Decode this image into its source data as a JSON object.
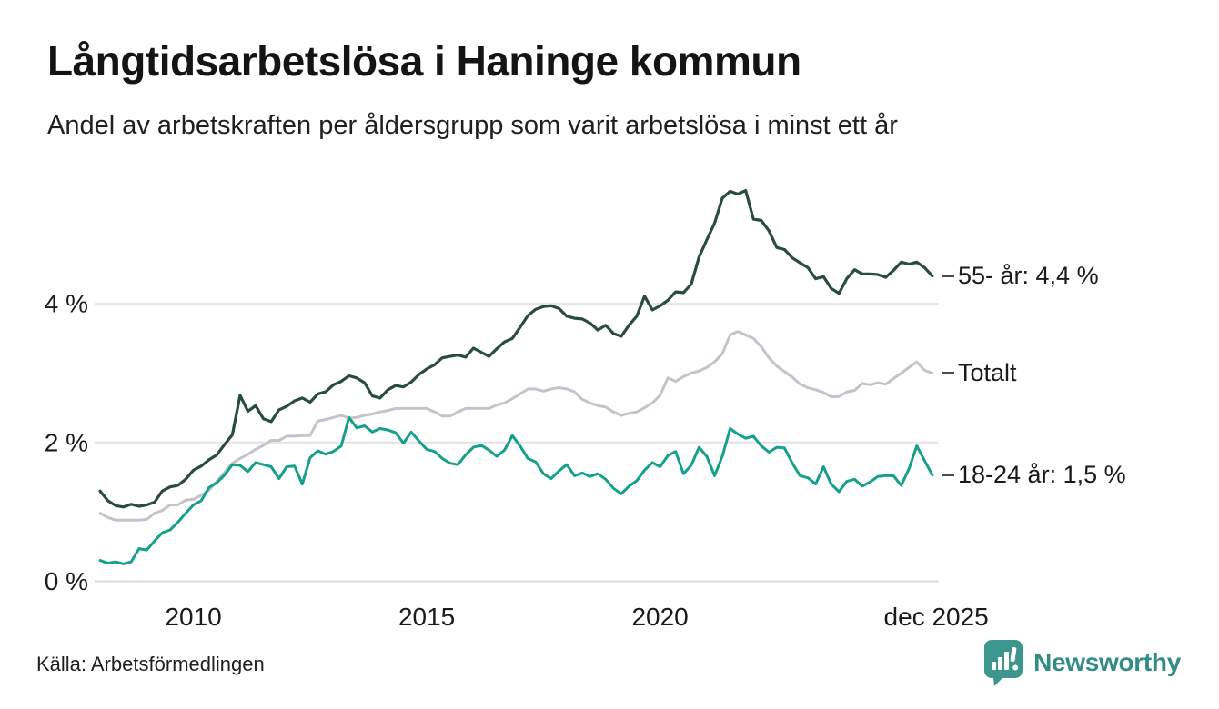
{
  "header": {
    "title": "Långtidsarbetslösa i Haninge kommun",
    "subtitle": "Andel av arbetskraften per åldersgrupp som varit arbetslösa i minst ett år"
  },
  "footer": {
    "source": "Källa: Arbetsförmedlingen",
    "logo_text": "Newsworthy"
  },
  "colors": {
    "background": "#ffffff",
    "title_text": "#141414",
    "axis_text": "#1a1a1a",
    "grid_line": "#e4e2e6",
    "zero_line": "#dbd9dc",
    "end_label_dash": "#4a4a4a",
    "series_55": "#2a4c40",
    "series_total": "#c5c2cc",
    "series_1824": "#14a08b",
    "logo_teal": "#3d968e",
    "logo_text_teal": "#328c85"
  },
  "chart_data": {
    "type": "line",
    "title": "Långtidsarbetslösa i Haninge kommun",
    "subtitle": "Andel av arbetskraften per åldersgrupp som varit arbetslösa i minst ett år",
    "unit": "%",
    "x_start_year": 2008.0,
    "x_step_years": 0.166667,
    "x_end_label": "dec 2025",
    "x_ticks": [
      {
        "year": 2010,
        "label": "2010"
      },
      {
        "year": 2015,
        "label": "2015"
      },
      {
        "year": 2020,
        "label": "2020"
      },
      {
        "year": 2025.917,
        "label": "dec 2025"
      }
    ],
    "y_ticks": [
      {
        "value": 0,
        "label": "0 %"
      },
      {
        "value": 2,
        "label": "2 %"
      },
      {
        "value": 4,
        "label": "4 %"
      }
    ],
    "ylim": [
      0,
      6.1
    ],
    "grid": "horizontal",
    "legend_position": "end-of-line-labels",
    "series": [
      {
        "name": "Totalt",
        "end_label": "Totalt",
        "color": "#c5c2cc",
        "stroke_width": 3,
        "values": [
          0.98,
          0.92,
          0.88,
          0.88,
          0.88,
          0.88,
          0.89,
          0.98,
          1.02,
          1.1,
          1.1,
          1.17,
          1.18,
          1.24,
          1.31,
          1.44,
          1.57,
          1.7,
          1.77,
          1.83,
          1.9,
          1.96,
          2.03,
          2.03,
          2.09,
          2.09,
          2.1,
          2.1,
          2.31,
          2.33,
          2.36,
          2.39,
          2.35,
          2.36,
          2.39,
          2.41,
          2.44,
          2.46,
          2.49,
          2.49,
          2.49,
          2.49,
          2.49,
          2.44,
          2.38,
          2.38,
          2.44,
          2.49,
          2.49,
          2.49,
          2.49,
          2.54,
          2.57,
          2.63,
          2.7,
          2.77,
          2.77,
          2.74,
          2.77,
          2.79,
          2.77,
          2.73,
          2.62,
          2.57,
          2.53,
          2.51,
          2.44,
          2.39,
          2.42,
          2.44,
          2.5,
          2.57,
          2.68,
          2.93,
          2.88,
          2.95,
          3.0,
          3.03,
          3.08,
          3.16,
          3.28,
          3.55,
          3.6,
          3.55,
          3.5,
          3.38,
          3.22,
          3.1,
          3.02,
          2.94,
          2.84,
          2.79,
          2.76,
          2.72,
          2.66,
          2.66,
          2.73,
          2.75,
          2.85,
          2.83,
          2.86,
          2.84,
          2.92,
          3.0,
          3.08,
          3.16,
          3.04,
          3.0
        ]
      },
      {
        "name": "18-24 år",
        "end_label": "18-24 år: 1,5 %",
        "last_value_display": "1,5 %",
        "color": "#14a08b",
        "stroke_width": 3,
        "values": [
          0.3,
          0.26,
          0.28,
          0.25,
          0.28,
          0.47,
          0.45,
          0.58,
          0.7,
          0.74,
          0.85,
          0.98,
          1.1,
          1.16,
          1.35,
          1.42,
          1.53,
          1.68,
          1.67,
          1.58,
          1.71,
          1.68,
          1.65,
          1.48,
          1.65,
          1.66,
          1.4,
          1.78,
          1.88,
          1.83,
          1.87,
          1.95,
          2.36,
          2.21,
          2.24,
          2.15,
          2.2,
          2.18,
          2.14,
          1.99,
          2.15,
          2.02,
          1.9,
          1.87,
          1.77,
          1.7,
          1.68,
          1.82,
          1.93,
          1.96,
          1.89,
          1.8,
          1.89,
          2.1,
          1.95,
          1.77,
          1.72,
          1.55,
          1.48,
          1.59,
          1.68,
          1.52,
          1.56,
          1.51,
          1.55,
          1.47,
          1.34,
          1.26,
          1.37,
          1.45,
          1.6,
          1.71,
          1.65,
          1.81,
          1.87,
          1.55,
          1.67,
          1.93,
          1.8,
          1.52,
          1.8,
          2.2,
          2.12,
          2.06,
          2.09,
          1.95,
          1.86,
          1.93,
          1.92,
          1.7,
          1.52,
          1.49,
          1.4,
          1.65,
          1.4,
          1.29,
          1.44,
          1.47,
          1.37,
          1.43,
          1.51,
          1.52,
          1.52,
          1.38,
          1.62,
          1.95,
          1.74,
          1.53
        ]
      },
      {
        "name": "55- år",
        "end_label": "55- år: 4,4 %",
        "last_value_display": "4,4 %",
        "color": "#2a4c40",
        "stroke_width": 3.2,
        "values": [
          1.3,
          1.16,
          1.09,
          1.07,
          1.11,
          1.08,
          1.1,
          1.14,
          1.3,
          1.36,
          1.38,
          1.47,
          1.6,
          1.66,
          1.75,
          1.82,
          1.97,
          2.11,
          2.68,
          2.45,
          2.53,
          2.34,
          2.3,
          2.47,
          2.52,
          2.6,
          2.64,
          2.58,
          2.7,
          2.73,
          2.83,
          2.88,
          2.96,
          2.93,
          2.86,
          2.67,
          2.64,
          2.76,
          2.82,
          2.8,
          2.87,
          2.98,
          3.06,
          3.12,
          3.22,
          3.24,
          3.26,
          3.23,
          3.36,
          3.3,
          3.24,
          3.35,
          3.45,
          3.5,
          3.66,
          3.83,
          3.92,
          3.96,
          3.97,
          3.93,
          3.82,
          3.79,
          3.78,
          3.72,
          3.62,
          3.69,
          3.57,
          3.53,
          3.69,
          3.82,
          4.11,
          3.91,
          3.97,
          4.05,
          4.17,
          4.16,
          4.28,
          4.67,
          4.92,
          5.16,
          5.52,
          5.62,
          5.58,
          5.63,
          5.22,
          5.2,
          5.05,
          4.81,
          4.78,
          4.66,
          4.59,
          4.52,
          4.36,
          4.39,
          4.22,
          4.15,
          4.36,
          4.49,
          4.43,
          4.43,
          4.42,
          4.38,
          4.48,
          4.6,
          4.57,
          4.6,
          4.52,
          4.4
        ]
      }
    ]
  }
}
